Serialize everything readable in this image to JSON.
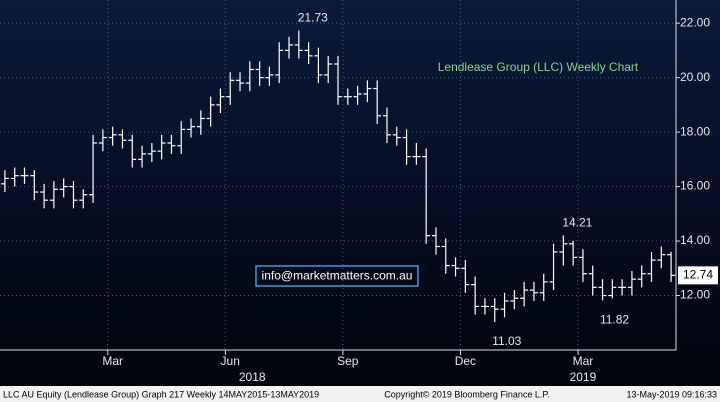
{
  "chart_data": {
    "type": "ohlc",
    "title": "Lendlease Group (LLC) Weekly Chart",
    "color": "#ffffff",
    "categories": [
      null,
      null,
      null,
      null,
      null,
      null,
      null,
      null,
      null,
      null,
      null,
      "Mar",
      null,
      null,
      null,
      null,
      null,
      null,
      null,
      null,
      null,
      null,
      null,
      "Jun",
      null,
      null,
      null,
      null,
      null,
      null,
      null,
      null,
      null,
      null,
      null,
      "Sep",
      null,
      null,
      null,
      null,
      null,
      null,
      null,
      null,
      null,
      null,
      null,
      "Dec",
      null,
      null,
      null,
      null,
      null,
      null,
      null,
      null,
      null,
      null,
      null,
      "Mar",
      null,
      null,
      null,
      null,
      null,
      null,
      null,
      null,
      null
    ],
    "year_labels": [
      "2018",
      "2019"
    ],
    "open": [
      16.1,
      16.3,
      16.4,
      16.4,
      15.8,
      15.5,
      15.9,
      16.0,
      15.5,
      15.7,
      17.6,
      17.8,
      17.9,
      17.7,
      17.0,
      17.2,
      17.3,
      17.6,
      17.5,
      18.1,
      18.2,
      18.5,
      19.0,
      19.3,
      19.9,
      19.8,
      20.3,
      20.0,
      20.1,
      21.0,
      21.2,
      21.0,
      20.8,
      20.1,
      20.5,
      19.3,
      19.3,
      19.4,
      19.6,
      18.6,
      17.9,
      17.8,
      17.1,
      17.1,
      14.2,
      13.8,
      13.1,
      13.0,
      12.4,
      11.6,
      11.6,
      11.5,
      11.8,
      11.9,
      12.2,
      12.1,
      12.5,
      13.6,
      13.9,
      13.4,
      12.8,
      12.3,
      12.0,
      12.3,
      12.3,
      12.6,
      12.8,
      13.3,
      13.5
    ],
    "high": [
      16.6,
      16.7,
      16.7,
      16.6,
      16.1,
      16.2,
      16.3,
      16.2,
      15.9,
      17.9,
      18.1,
      18.2,
      18.1,
      17.9,
      17.5,
      17.6,
      17.9,
      17.9,
      18.4,
      18.5,
      18.8,
      19.3,
      19.6,
      20.2,
      20.2,
      20.6,
      20.6,
      20.4,
      21.3,
      21.5,
      21.73,
      21.3,
      21.1,
      20.8,
      20.8,
      19.6,
      19.7,
      19.9,
      19.9,
      18.9,
      18.2,
      18.1,
      17.6,
      17.4,
      14.5,
      14.1,
      13.4,
      13.3,
      12.7,
      11.9,
      11.9,
      12.1,
      12.2,
      12.5,
      12.5,
      12.8,
      13.9,
      14.21,
      14.0,
      13.7,
      13.1,
      12.6,
      12.6,
      12.6,
      12.9,
      13.1,
      13.6,
      13.8,
      13.6
    ],
    "low": [
      15.8,
      16.0,
      16.1,
      15.5,
      15.2,
      15.2,
      15.6,
      15.2,
      15.2,
      15.4,
      17.3,
      17.5,
      17.4,
      16.7,
      16.7,
      16.9,
      17.0,
      17.2,
      17.2,
      17.8,
      17.9,
      18.2,
      18.7,
      19.0,
      19.5,
      19.5,
      19.7,
      19.7,
      19.8,
      20.7,
      20.7,
      20.5,
      19.8,
      19.8,
      19.0,
      19.0,
      19.0,
      19.1,
      18.3,
      17.6,
      17.5,
      16.8,
      16.8,
      13.9,
      13.5,
      12.8,
      12.7,
      12.1,
      11.3,
      11.3,
      11.03,
      11.2,
      11.5,
      11.6,
      11.8,
      11.8,
      12.2,
      13.1,
      13.1,
      12.5,
      12.0,
      11.82,
      11.9,
      12.0,
      12.0,
      12.3,
      12.5,
      13.0,
      12.5
    ],
    "close": [
      16.3,
      16.4,
      16.4,
      15.8,
      15.5,
      15.9,
      16.0,
      15.5,
      15.7,
      17.6,
      17.8,
      17.9,
      17.7,
      17.0,
      17.2,
      17.3,
      17.6,
      17.5,
      18.1,
      18.2,
      18.5,
      19.0,
      19.3,
      19.9,
      19.8,
      20.3,
      20.0,
      20.1,
      21.0,
      21.2,
      21.0,
      20.8,
      20.1,
      20.5,
      19.3,
      19.3,
      19.4,
      19.6,
      18.6,
      17.9,
      17.8,
      17.1,
      17.1,
      14.2,
      13.8,
      13.1,
      13.0,
      12.4,
      11.6,
      11.6,
      11.5,
      11.8,
      11.9,
      12.2,
      12.1,
      12.5,
      13.6,
      13.9,
      13.4,
      12.8,
      12.3,
      12.0,
      12.3,
      12.3,
      12.6,
      12.8,
      13.3,
      13.5,
      12.74
    ],
    "last_price_label": "12.74",
    "annotations": [
      {
        "text": "21.73",
        "index": 30,
        "value": 21.73,
        "pos": "above"
      },
      {
        "text": "14.21",
        "index": 57,
        "value": 14.21,
        "pos": "above"
      },
      {
        "text": "11.03",
        "index": 50,
        "value": 11.03,
        "pos": "below"
      },
      {
        "text": "11.82",
        "index": 61,
        "value": 11.82,
        "pos": "below"
      }
    ],
    "ylim": [
      10,
      22.85
    ],
    "yticks": [
      {
        "value": 12,
        "label": "12.00"
      },
      {
        "value": 14,
        "label": "14.00"
      },
      {
        "value": 16,
        "label": "16.00"
      },
      {
        "value": 18,
        "label": "18.00"
      },
      {
        "value": 20,
        "label": "20.00"
      },
      {
        "value": 22,
        "label": "22.00"
      }
    ],
    "grid": true,
    "watermark": "info@marketmatters.com.au",
    "footer_left": "LLC AU Equity (Lendlease Group) Graph 217  Weekly 14MAY2015-13MAY2019",
    "footer_center": "Copyright© 2019 Bloomberg Finance L.P.",
    "footer_right": "13-May-2019 09:16:33"
  }
}
